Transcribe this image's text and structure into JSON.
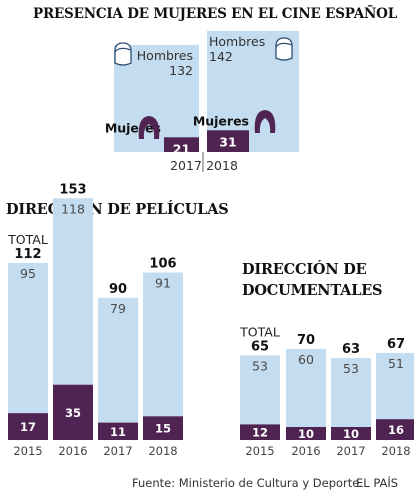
{
  "title": "PRESENCIA DE MUJERES EN EL CINE ESPAÑOL",
  "source": "Fuente: Ministerio de Cultura y Deporte.",
  "credit": "EL PAÍS",
  "colors": {
    "men": "#c4dcef",
    "women": "#4f2452",
    "women_label": "#ffffff",
    "text": "#222222",
    "axis": "#555555"
  },
  "chart_data": [
    {
      "id": "presencia",
      "type": "bar",
      "title": "PRESENCIA DE MUJERES EN EL CINE ESPAÑOL",
      "categories": [
        "2017",
        "2018"
      ],
      "series": [
        {
          "name": "Hombres",
          "values": [
            132,
            142
          ]
        },
        {
          "name": "Mujeres",
          "values": [
            21,
            31
          ]
        }
      ],
      "icons": [
        "male-head-icon",
        "female-head-icon"
      ]
    },
    {
      "id": "peliculas",
      "type": "bar",
      "title": "DIRECCIÓN DE PELÍCULAS",
      "categories": [
        "2015",
        "2016",
        "2017",
        "2018"
      ],
      "total_label": "TOTAL",
      "totals": [
        112,
        153,
        90,
        106
      ],
      "series": [
        {
          "values": [
            95,
            118,
            79,
            91
          ]
        },
        {
          "values": [
            17,
            35,
            11,
            15
          ]
        }
      ]
    },
    {
      "id": "documentales",
      "type": "bar",
      "title": "DIRECCIÓN DE DOCUMENTALES",
      "categories": [
        "2015",
        "2016",
        "2017",
        "2018"
      ],
      "total_label": "TOTAL",
      "totals": [
        65,
        70,
        63,
        67
      ],
      "series": [
        {
          "values": [
            53,
            60,
            53,
            51
          ]
        },
        {
          "values": [
            12,
            10,
            10,
            16
          ]
        }
      ]
    }
  ]
}
